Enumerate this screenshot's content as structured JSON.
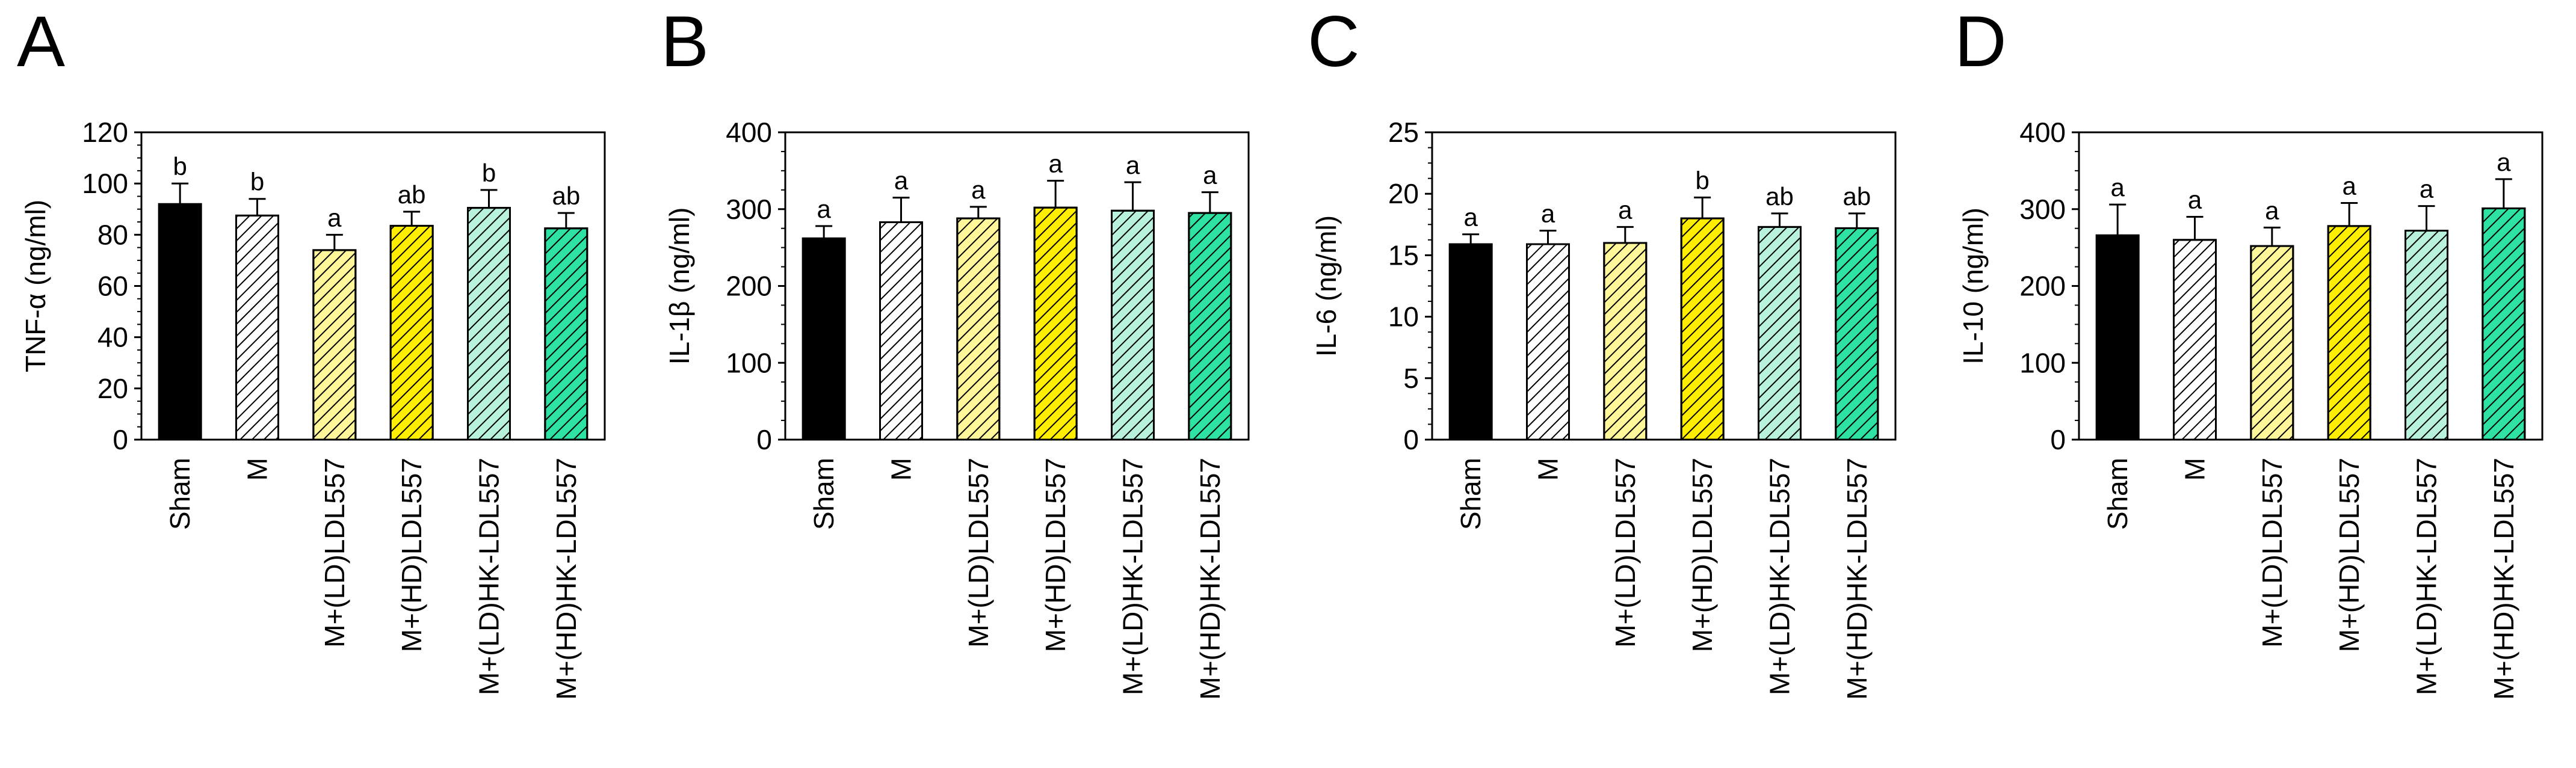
{
  "chart_data": [
    {
      "type": "bar",
      "panel": "A",
      "ylabel": "TNF-α (ng/ml)",
      "ylim": [
        0,
        120
      ],
      "yticks": [
        0,
        20,
        40,
        60,
        80,
        100,
        120
      ],
      "categories": [
        "Sham",
        "M",
        "M+(LD)LDL557",
        "M+(HD)LDL557",
        "M+(LD)HK-LDL557",
        "M+(HD)HK-LDL557"
      ],
      "values": [
        92,
        87.5,
        74,
        83.5,
        90.5,
        82.5
      ],
      "errors": [
        8,
        6.5,
        6,
        5.5,
        7,
        6
      ],
      "significance": [
        "b",
        "b",
        "a",
        "ab",
        "b",
        "ab"
      ]
    },
    {
      "type": "bar",
      "panel": "B",
      "ylabel": "IL-1β (ng/ml)",
      "ylim": [
        0,
        400
      ],
      "yticks": [
        0,
        100,
        200,
        300,
        400
      ],
      "categories": [
        "Sham",
        "M",
        "M+(LD)LDL557",
        "M+(HD)LDL557",
        "M+(LD)HK-LDL557",
        "M+(HD)HK-LDL557"
      ],
      "values": [
        262,
        283,
        288,
        302,
        298,
        295
      ],
      "errors": [
        16,
        32,
        15,
        35,
        37,
        27
      ],
      "significance": [
        "a",
        "a",
        "a",
        "a",
        "a",
        "a"
      ]
    },
    {
      "type": "bar",
      "panel": "C",
      "ylabel": "IL-6 (ng/ml)",
      "ylim": [
        0,
        25
      ],
      "yticks": [
        0,
        5,
        10,
        15,
        20,
        25
      ],
      "categories": [
        "Sham",
        "M",
        "M+(LD)LDL557",
        "M+(HD)LDL557",
        "M+(LD)HK-LDL557",
        "M+(HD)HK-LDL557"
      ],
      "values": [
        15.9,
        15.9,
        16,
        18,
        17.3,
        17.2
      ],
      "errors": [
        0.8,
        1.1,
        1.3,
        1.7,
        1.1,
        1.2
      ],
      "significance": [
        "a",
        "a",
        "a",
        "b",
        "ab",
        "ab"
      ]
    },
    {
      "type": "bar",
      "panel": "D",
      "ylabel": "IL-10 (ng/ml)",
      "ylim": [
        0,
        400
      ],
      "yticks": [
        0,
        100,
        200,
        300,
        400
      ],
      "categories": [
        "Sham",
        "M",
        "M+(LD)LDL557",
        "M+(HD)LDL557",
        "M+(LD)HK-LDL557",
        "M+(HD)HK-LDL557"
      ],
      "values": [
        266,
        260,
        252,
        278,
        272,
        301
      ],
      "errors": [
        40,
        30,
        24,
        30,
        32,
        38
      ],
      "significance": [
        "a",
        "a",
        "a",
        "a",
        "a",
        "a"
      ]
    }
  ],
  "bar_styles": [
    {
      "fill": "#000000",
      "hatch": false
    },
    {
      "fill": "#ffffff",
      "hatch": true
    },
    {
      "fill": "#fff79a",
      "hatch": true
    },
    {
      "fill": "#ffee00",
      "hatch": true
    },
    {
      "fill": "#b8f2dd",
      "hatch": true
    },
    {
      "fill": "#2ee2a2",
      "hatch": true
    }
  ]
}
